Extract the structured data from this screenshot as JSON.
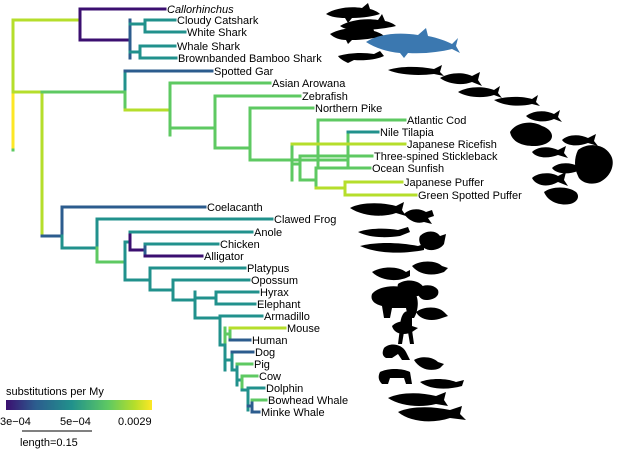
{
  "tips": [
    {
      "id": "callorhinchus",
      "label": "Callorhinchus",
      "italic": true
    },
    {
      "id": "cloudy-catshark",
      "label": "Cloudy Catshark"
    },
    {
      "id": "white-shark",
      "label": "White Shark"
    },
    {
      "id": "whale-shark",
      "label": "Whale Shark"
    },
    {
      "id": "brownbanded-bamboo-shark",
      "label": "Brownbanded Bamboo Shark"
    },
    {
      "id": "spotted-gar",
      "label": "Spotted Gar"
    },
    {
      "id": "asian-arowana",
      "label": "Asian Arowana"
    },
    {
      "id": "zebrafish",
      "label": "Zebrafish"
    },
    {
      "id": "northern-pike",
      "label": "Northern Pike"
    },
    {
      "id": "atlantic-cod",
      "label": "Atlantic Cod"
    },
    {
      "id": "nile-tilapia",
      "label": "Nile Tilapia"
    },
    {
      "id": "japanese-ricefish",
      "label": "Japanese Ricefish"
    },
    {
      "id": "three-spined-stickleback",
      "label": "Three-spined Stickleback"
    },
    {
      "id": "ocean-sunfish",
      "label": "Ocean Sunfish"
    },
    {
      "id": "japanese-puffer",
      "label": "Japanese Puffer"
    },
    {
      "id": "green-spotted-puffer",
      "label": "Green Spotted Puffer"
    },
    {
      "id": "coelacanth",
      "label": "Coelacanth"
    },
    {
      "id": "clawed-frog",
      "label": "Clawed Frog"
    },
    {
      "id": "anole",
      "label": "Anole"
    },
    {
      "id": "chicken",
      "label": "Chicken"
    },
    {
      "id": "alligator",
      "label": "Alligator"
    },
    {
      "id": "platypus",
      "label": "Platypus"
    },
    {
      "id": "opossum",
      "label": "Opossum"
    },
    {
      "id": "hyrax",
      "label": "Hyrax"
    },
    {
      "id": "elephant",
      "label": "Elephant"
    },
    {
      "id": "armadillo",
      "label": "Armadillo"
    },
    {
      "id": "mouse",
      "label": "Mouse"
    },
    {
      "id": "human",
      "label": "Human"
    },
    {
      "id": "dog",
      "label": "Dog"
    },
    {
      "id": "pig",
      "label": "Pig"
    },
    {
      "id": "cow",
      "label": "Cow"
    },
    {
      "id": "dolphin",
      "label": "Dolphin"
    },
    {
      "id": "bowhead-whale",
      "label": "Bowhead Whale"
    },
    {
      "id": "minke-whale",
      "label": "Minke Whale"
    }
  ],
  "legend": {
    "title": "substitutions per My",
    "ticks": [
      "3e−04",
      "5e−04",
      "0.0029"
    ],
    "gradient_colors": [
      "#3b0f70",
      "#2c5c8e",
      "#21918c",
      "#5ec962",
      "#b5de2b",
      "#fde725"
    ]
  },
  "scale_bar": {
    "label": "length=0.15"
  },
  "highlight_color": "#3b78b0"
}
